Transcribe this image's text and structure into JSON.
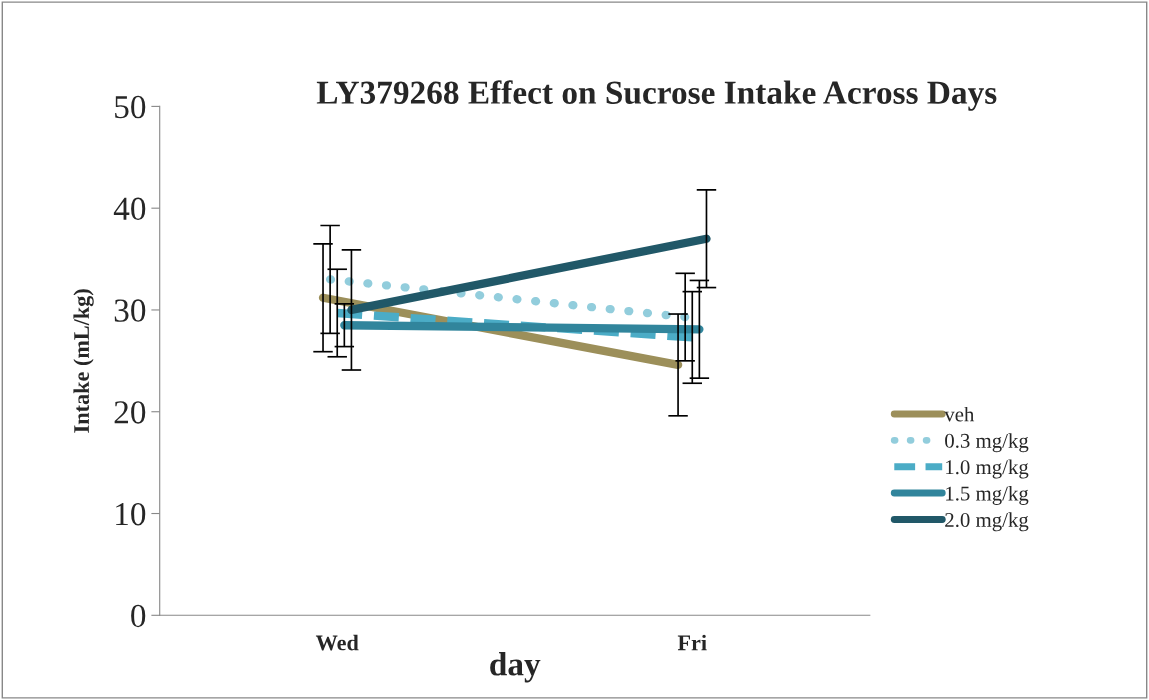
{
  "chart_data": {
    "type": "line",
    "title": "LY379268 Effect on Sucrose Intake Across Days",
    "xlabel": "day",
    "ylabel": "Intake (mL/kg)",
    "categories": [
      "Wed",
      "Fri"
    ],
    "series": [
      {
        "name": "veh",
        "color": "#9c8f5a",
        "line_style": "solid",
        "values": [
          31.2,
          24.6
        ],
        "errors": [
          5.3,
          5.0
        ]
      },
      {
        "name": "0.3 mg/kg",
        "color": "#92cddc",
        "line_style": "dotted",
        "values": [
          33.0,
          29.3
        ],
        "errors": [
          5.3,
          4.3
        ]
      },
      {
        "name": "1.0 mg/kg",
        "color": "#4bacc6",
        "line_style": "dashed",
        "values": [
          29.7,
          27.3
        ],
        "errors": [
          4.3,
          4.5
        ]
      },
      {
        "name": "1.5 mg/kg",
        "color": "#31859c",
        "line_style": "solid",
        "values": [
          28.5,
          28.1
        ],
        "errors": [
          2.1,
          4.8
        ]
      },
      {
        "name": "2.0 mg/kg",
        "color": "#215868",
        "line_style": "solid",
        "values": [
          30.0,
          37.0
        ],
        "errors": [
          5.9,
          4.8
        ]
      }
    ],
    "ylim": [
      0,
      50
    ],
    "yticks": [
      0,
      10,
      20,
      30,
      40,
      50
    ],
    "grid": false,
    "legend": "right",
    "marker": "none"
  }
}
